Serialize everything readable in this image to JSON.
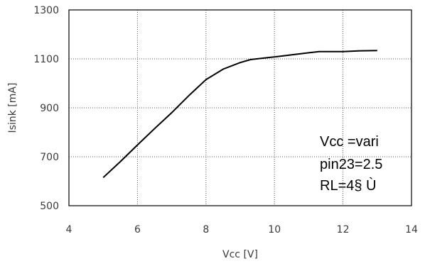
{
  "chart_data": {
    "type": "line",
    "title": "",
    "xlabel": "Vcc [V]",
    "ylabel": "Isink [mA]",
    "xlim": [
      4,
      14
    ],
    "ylim": [
      500,
      1300
    ],
    "x_ticks": [
      "4",
      "6",
      "8",
      "10",
      "12",
      "14"
    ],
    "y_ticks": [
      "500",
      "700",
      "900",
      "1100",
      "1300"
    ],
    "grid": true,
    "series": [
      {
        "x": [
          5.0,
          5.5,
          6.0,
          6.5,
          7.0,
          7.5,
          8.0,
          8.5,
          9.0,
          9.3,
          10.0,
          11.0,
          11.3,
          12.0,
          12.5,
          13.0
        ],
        "y": [
          615,
          680,
          748,
          815,
          880,
          950,
          1015,
          1058,
          1085,
          1097,
          1108,
          1125,
          1130,
          1130,
          1133,
          1134
        ]
      }
    ],
    "annotations": [
      "Vcc =vari",
      "pin23=2.5",
      "RL=4§ Ù"
    ],
    "line_color": "#000000",
    "grid_color": "#555555"
  }
}
